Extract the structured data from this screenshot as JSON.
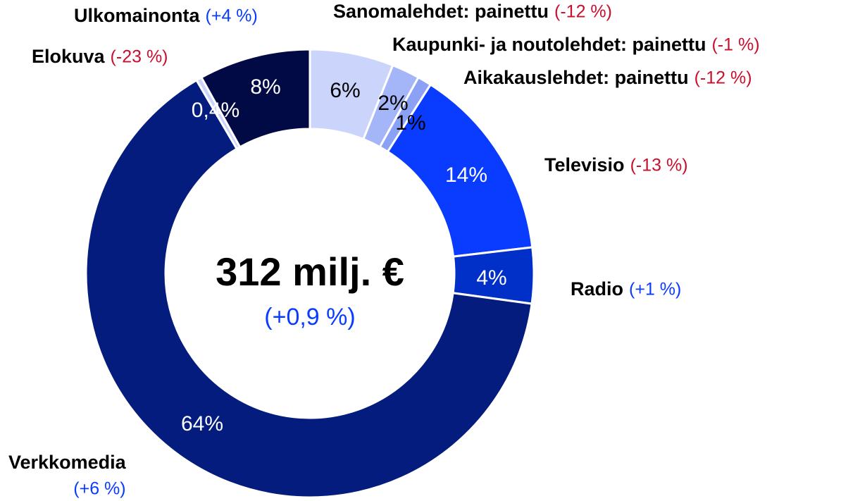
{
  "chart_data": {
    "type": "pie",
    "donut": true,
    "center_label": "312 milj. €",
    "center_sublabel": "(+0,9 %)",
    "center_sublabel_color": "#0a3cff",
    "categories": [
      "Sanomalehdet: painettu",
      "Kaupunki- ja noutolehdet: painettu",
      "Aikakauslehdet: painettu",
      "Televisio",
      "Radio",
      "Verkkomedia",
      "Elokuva",
      "Ulkomainonta"
    ],
    "changes": [
      "(-12 %)",
      "(-1 %)",
      "(-12 %)",
      "(-13 %)",
      "(+1 %)",
      "(+6 %)",
      "(-23 %)",
      "(+4 %)"
    ],
    "change_colors": [
      "#c8102e",
      "#c8102e",
      "#c8102e",
      "#c8102e",
      "#0a3cff",
      "#0a3cff",
      "#c8102e",
      "#0a3cff"
    ],
    "values": [
      6,
      2,
      1,
      14,
      4,
      64,
      0.4,
      8
    ],
    "value_labels": [
      "6%",
      "2%",
      "1%",
      "14%",
      "4%",
      "64%",
      "0,4%",
      "8%"
    ],
    "colors": [
      "#cbd5fb",
      "#a5b6f8",
      "#8ba1f6",
      "#0a3cff",
      "#0030c8",
      "#041c7e",
      "#cbd5fb",
      "#010a45"
    ],
    "label_colors": [
      "#000000",
      "#000000",
      "#000000",
      "#ffffff",
      "#ffffff",
      "#ffffff",
      "#ffffff",
      "#ffffff"
    ]
  }
}
